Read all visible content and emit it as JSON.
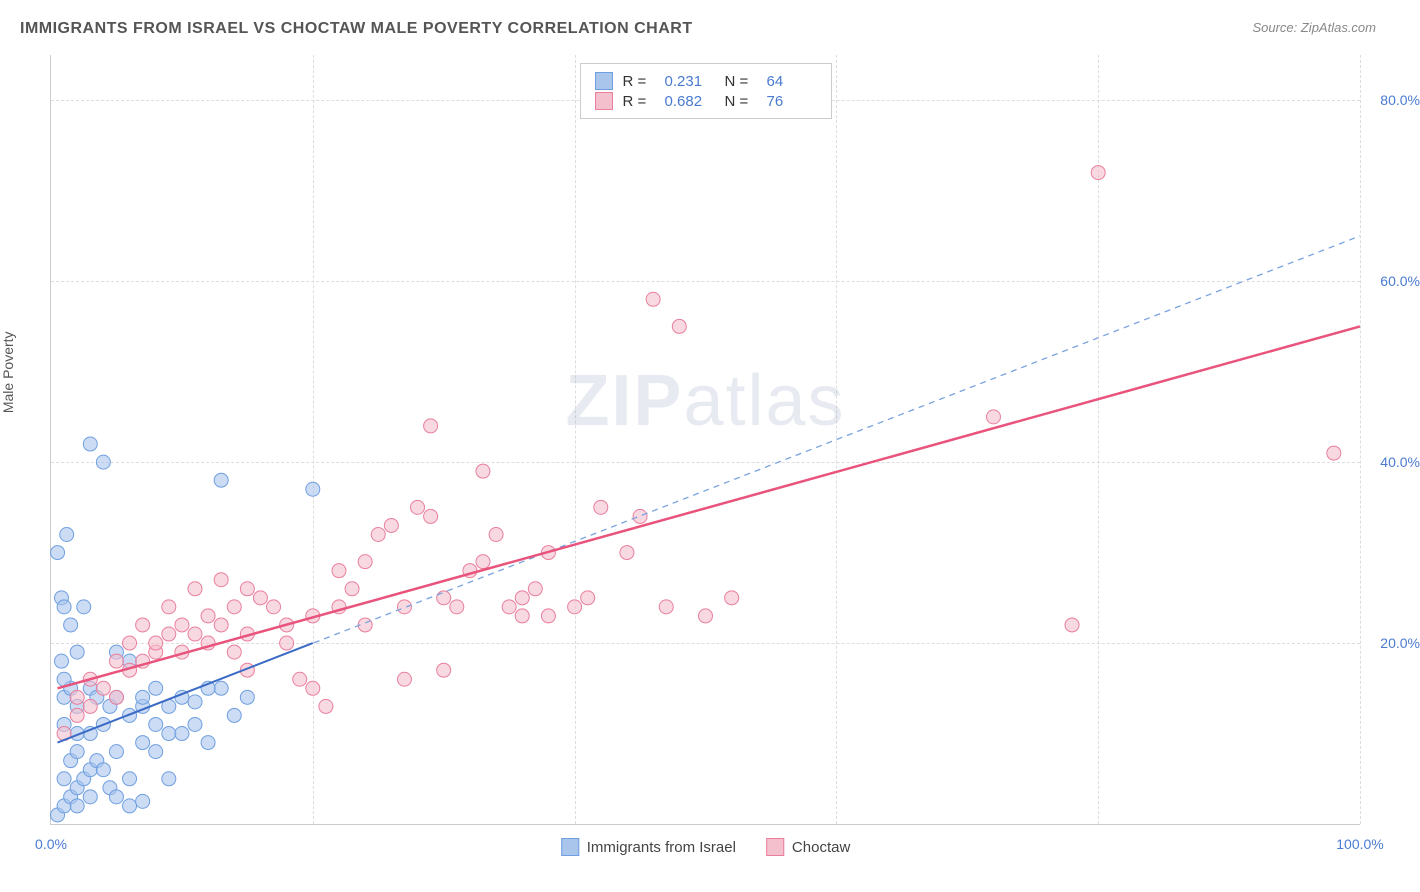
{
  "title": "IMMIGRANTS FROM ISRAEL VS CHOCTAW MALE POVERTY CORRELATION CHART",
  "source_label": "Source: ",
  "source_name": "ZipAtlas.com",
  "y_axis_label": "Male Poverty",
  "watermark_bold": "ZIP",
  "watermark_light": "atlas",
  "chart": {
    "type": "scatter",
    "xlim": [
      0,
      100
    ],
    "ylim": [
      0,
      85
    ],
    "x_ticks": [
      0,
      20,
      40,
      60,
      80,
      100
    ],
    "x_tick_labels": [
      "0.0%",
      "",
      "",
      "",
      "",
      "100.0%"
    ],
    "x_grid_at": [
      20,
      40,
      60,
      80,
      100
    ],
    "y_ticks": [
      20,
      40,
      60,
      80
    ],
    "y_tick_labels": [
      "20.0%",
      "40.0%",
      "60.0%",
      "80.0%"
    ],
    "background_color": "#ffffff",
    "grid_color": "#dddddd",
    "axis_color": "#cccccc",
    "tick_label_color": "#4a7bd0",
    "marker_radius": 7,
    "marker_opacity": 0.6,
    "series": [
      {
        "name": "Immigrants from Israel",
        "color_fill": "#a9c5ec",
        "color_stroke": "#6f9fe0",
        "R": 0.231,
        "N": 64,
        "trend_solid": {
          "x1": 0.5,
          "y1": 9,
          "x2": 20,
          "y2": 20,
          "color": "#3b6bc5",
          "width": 2
        },
        "trend_dashed": {
          "x1": 0.5,
          "y1": 9,
          "x2": 100,
          "y2": 65,
          "color": "#7aa2e0",
          "width": 1.3,
          "dash": "6 5"
        },
        "points": [
          [
            0.5,
            1
          ],
          [
            1,
            2
          ],
          [
            1.5,
            3
          ],
          [
            2,
            2
          ],
          [
            2,
            4
          ],
          [
            3,
            3
          ],
          [
            1,
            5
          ],
          [
            2.5,
            5
          ],
          [
            3,
            6
          ],
          [
            1.5,
            7
          ],
          [
            2,
            8
          ],
          [
            3.5,
            7
          ],
          [
            4,
            6
          ],
          [
            4.5,
            4
          ],
          [
            5,
            3
          ],
          [
            5,
            8
          ],
          [
            6,
            5
          ],
          [
            6,
            2
          ],
          [
            7,
            2.5
          ],
          [
            7,
            9
          ],
          [
            8,
            11
          ],
          [
            3,
            10
          ],
          [
            4,
            11
          ],
          [
            2,
            13
          ],
          [
            1,
            14
          ],
          [
            1.5,
            15
          ],
          [
            3,
            15
          ],
          [
            5,
            14
          ],
          [
            6,
            12
          ],
          [
            7,
            13
          ],
          [
            8,
            8
          ],
          [
            9,
            10
          ],
          [
            9,
            5
          ],
          [
            10,
            10
          ],
          [
            10,
            14
          ],
          [
            11,
            13.5
          ],
          [
            12,
            9
          ],
          [
            13,
            15
          ],
          [
            14,
            12
          ],
          [
            7,
            14
          ],
          [
            8,
            15
          ],
          [
            1,
            16
          ],
          [
            0.8,
            18
          ],
          [
            2,
            19
          ],
          [
            1.5,
            22
          ],
          [
            0.8,
            25
          ],
          [
            1,
            24
          ],
          [
            2.5,
            24
          ],
          [
            0.5,
            30
          ],
          [
            1.2,
            32
          ],
          [
            4,
            40
          ],
          [
            3,
            42
          ],
          [
            12,
            15
          ],
          [
            15,
            14
          ],
          [
            13,
            38
          ],
          [
            20,
            37
          ],
          [
            5,
            19
          ],
          [
            6,
            18
          ],
          [
            9,
            13
          ],
          [
            11,
            11
          ],
          [
            4.5,
            13
          ],
          [
            3.5,
            14
          ],
          [
            2,
            10
          ],
          [
            1,
            11
          ]
        ]
      },
      {
        "name": "Choctaw",
        "color_fill": "#f5c0cd",
        "color_stroke": "#e97f9d",
        "R": 0.682,
        "N": 76,
        "trend_solid": {
          "x1": 0.5,
          "y1": 15,
          "x2": 100,
          "y2": 55,
          "color": "#e8547c",
          "width": 2.5
        },
        "points": [
          [
            1,
            10
          ],
          [
            2,
            12
          ],
          [
            2,
            14
          ],
          [
            3,
            13
          ],
          [
            3,
            16
          ],
          [
            4,
            15
          ],
          [
            5,
            14
          ],
          [
            5,
            18
          ],
          [
            6,
            17
          ],
          [
            6,
            20
          ],
          [
            7,
            18
          ],
          [
            7,
            22
          ],
          [
            8,
            19
          ],
          [
            8,
            20
          ],
          [
            9,
            21
          ],
          [
            10,
            19
          ],
          [
            10,
            22
          ],
          [
            11,
            21
          ],
          [
            12,
            20
          ],
          [
            12,
            23
          ],
          [
            13,
            22
          ],
          [
            14,
            24
          ],
          [
            14,
            19
          ],
          [
            15,
            17
          ],
          [
            15,
            21
          ],
          [
            16,
            25
          ],
          [
            17,
            24
          ],
          [
            18,
            22
          ],
          [
            18,
            20
          ],
          [
            19,
            16
          ],
          [
            20,
            23
          ],
          [
            20,
            15
          ],
          [
            21,
            13
          ],
          [
            22,
            24
          ],
          [
            22,
            28
          ],
          [
            23,
            26
          ],
          [
            24,
            22
          ],
          [
            24,
            29
          ],
          [
            25,
            32
          ],
          [
            26,
            33
          ],
          [
            27,
            24
          ],
          [
            27,
            16
          ],
          [
            28,
            35
          ],
          [
            29,
            34
          ],
          [
            29,
            44
          ],
          [
            30,
            17
          ],
          [
            30,
            25
          ],
          [
            31,
            24
          ],
          [
            32,
            28
          ],
          [
            33,
            29
          ],
          [
            33,
            39
          ],
          [
            34,
            32
          ],
          [
            35,
            24
          ],
          [
            36,
            25
          ],
          [
            36,
            23
          ],
          [
            37,
            26
          ],
          [
            38,
            30
          ],
          [
            38,
            23
          ],
          [
            40,
            24
          ],
          [
            41,
            25
          ],
          [
            42,
            35
          ],
          [
            44,
            30
          ],
          [
            45,
            34
          ],
          [
            47,
            24
          ],
          [
            46,
            58
          ],
          [
            48,
            55
          ],
          [
            50,
            23
          ],
          [
            52,
            25
          ],
          [
            72,
            45
          ],
          [
            78,
            22
          ],
          [
            80,
            72
          ],
          [
            98,
            41
          ],
          [
            15,
            26
          ],
          [
            13,
            27
          ],
          [
            11,
            26
          ],
          [
            9,
            24
          ]
        ]
      }
    ],
    "legend_top": {
      "border_color": "#cccccc",
      "text_color": "#333333",
      "value_color": "#4a7bd0"
    },
    "legend_bottom_labels": [
      "Immigrants from Israel",
      "Choctaw"
    ]
  }
}
